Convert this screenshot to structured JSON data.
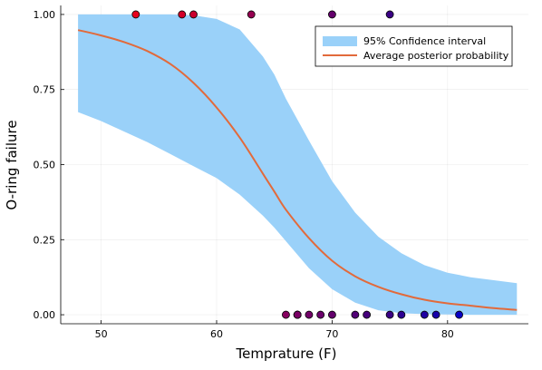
{
  "chart_data": {
    "type": "line",
    "xlabel": "Temprature (F)",
    "ylabel": "O-ring failure",
    "xlim": [
      46.5,
      87
    ],
    "ylim": [
      -0.03,
      1.03
    ],
    "xticks": [
      50,
      60,
      70,
      80
    ],
    "yticks": [
      0.0,
      0.25,
      0.5,
      0.75,
      1.0
    ],
    "xtick_labels": [
      "50",
      "60",
      "70",
      "80"
    ],
    "ytick_labels": [
      "0.00",
      "0.25",
      "0.50",
      "0.75",
      "1.00"
    ],
    "grid": true,
    "legend_position": "top-right",
    "band": {
      "name": "95% Confidence interval",
      "color": "#9ad1f9",
      "x": [
        48,
        50,
        52,
        54,
        56,
        58,
        60,
        62,
        64,
        65,
        66,
        68,
        70,
        72,
        74,
        76,
        78,
        80,
        82,
        84,
        86
      ],
      "lower": [
        0.675,
        0.645,
        0.61,
        0.575,
        0.535,
        0.495,
        0.455,
        0.4,
        0.33,
        0.29,
        0.245,
        0.155,
        0.085,
        0.04,
        0.015,
        0.005,
        0.002,
        0.001,
        0.0,
        0.0,
        0.0
      ],
      "upper": [
        1.0,
        1.0,
        1.0,
        1.0,
        1.0,
        0.997,
        0.985,
        0.95,
        0.86,
        0.8,
        0.72,
        0.58,
        0.445,
        0.34,
        0.26,
        0.205,
        0.165,
        0.14,
        0.125,
        0.115,
        0.105
      ]
    },
    "series": [
      {
        "name": "Average posterior probability",
        "color": "#e26a3b",
        "x": [
          48,
          50,
          52,
          54,
          56,
          58,
          60,
          62,
          64,
          65,
          66,
          68,
          70,
          72,
          74,
          76,
          78,
          80,
          82,
          84,
          86
        ],
        "values": [
          0.948,
          0.93,
          0.908,
          0.878,
          0.835,
          0.772,
          0.69,
          0.59,
          0.47,
          0.41,
          0.35,
          0.255,
          0.18,
          0.128,
          0.093,
          0.068,
          0.05,
          0.038,
          0.03,
          0.022,
          0.016
        ]
      }
    ],
    "observations": {
      "x": [
        53,
        57,
        58,
        63,
        70,
        75,
        66,
        67,
        67,
        67,
        68,
        69,
        70,
        72,
        73,
        75,
        76,
        78,
        79,
        81
      ],
      "y": [
        1,
        1,
        1,
        1,
        1,
        1,
        0,
        0,
        0,
        0,
        0,
        0,
        0,
        0,
        0,
        0,
        0,
        0,
        0,
        0
      ],
      "colors": [
        "#e8001d",
        "#d30028",
        "#ca002e",
        "#950051",
        "#64006c",
        "#3a0084",
        "#860060",
        "#7a0065",
        "#7a0065",
        "#7a0065",
        "#720068",
        "#6b006c",
        "#64006c",
        "#520076",
        "#46007c",
        "#3a0084",
        "#2d0092",
        "#1f00a3",
        "#1700aa",
        "#0800c4"
      ]
    }
  }
}
